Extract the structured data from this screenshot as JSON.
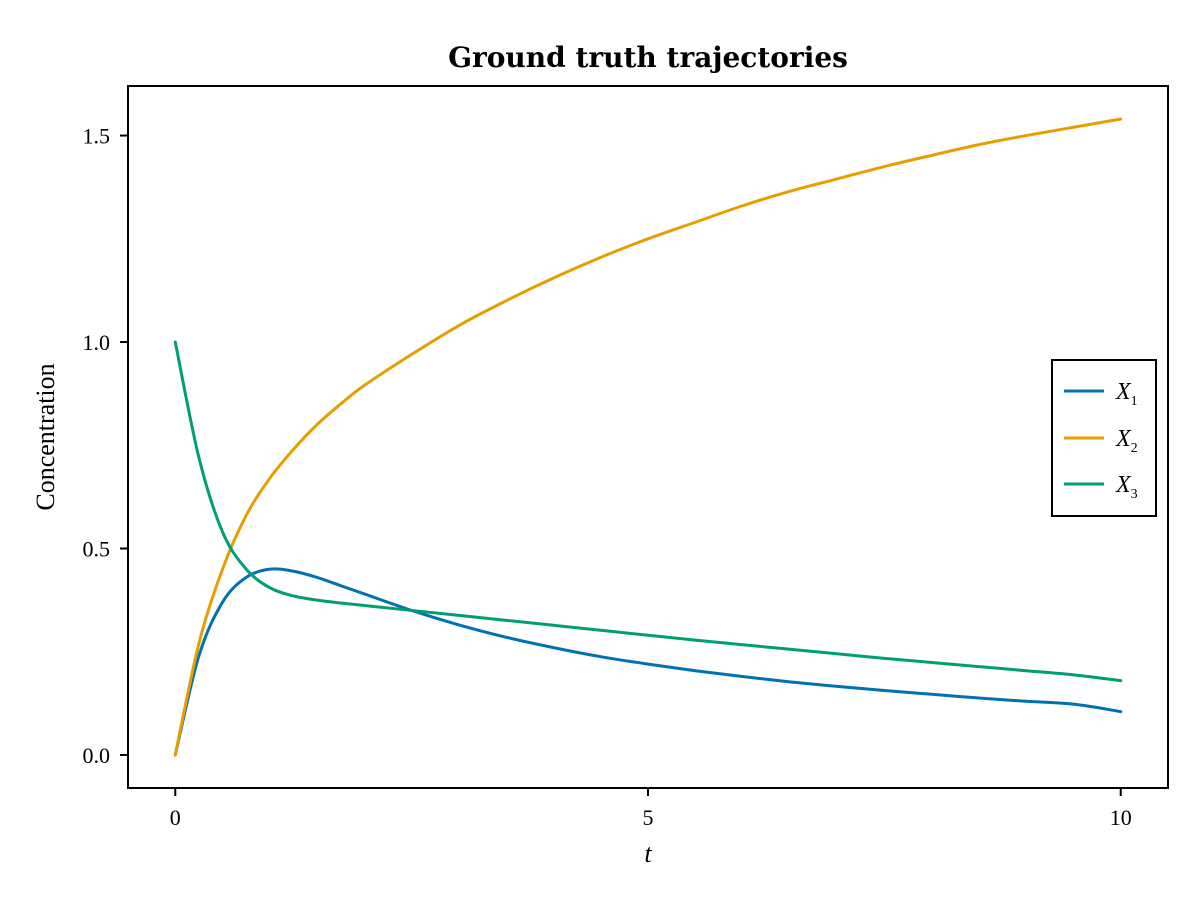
{
  "chart_data": {
    "type": "line",
    "title": "Ground truth trajectories",
    "xlabel": "t",
    "ylabel": "Concentration",
    "xlim": [
      -0.5,
      10.5
    ],
    "ylim": [
      -0.08,
      1.62
    ],
    "x_ticks": [
      0,
      5,
      10
    ],
    "x_tick_labels": [
      "0",
      "5",
      "10"
    ],
    "y_ticks": [
      0.0,
      0.5,
      1.0,
      1.5
    ],
    "y_tick_labels": [
      "0.0",
      "0.5",
      "1.0",
      "1.5"
    ],
    "grid": false,
    "legend_position": "right",
    "x": [
      0,
      0.25,
      0.5,
      0.75,
      1.0,
      1.25,
      1.5,
      1.75,
      2.0,
      2.5,
      3.0,
      3.5,
      4.0,
      4.5,
      5.0,
      5.5,
      6.0,
      6.5,
      7.0,
      7.5,
      8.0,
      8.5,
      9.0,
      9.5,
      10.0
    ],
    "series": [
      {
        "name": "X",
        "subscript": "1",
        "color": "#0072b2",
        "values": [
          0.0,
          0.24,
          0.37,
          0.43,
          0.45,
          0.445,
          0.43,
          0.41,
          0.39,
          0.35,
          0.315,
          0.285,
          0.26,
          0.238,
          0.22,
          0.204,
          0.19,
          0.177,
          0.166,
          0.156,
          0.147,
          0.138,
          0.13,
          0.123,
          0.105
        ]
      },
      {
        "name": "X",
        "subscript": "2",
        "color": "#e69f00",
        "values": [
          0.0,
          0.27,
          0.45,
          0.58,
          0.67,
          0.74,
          0.8,
          0.85,
          0.895,
          0.97,
          1.04,
          1.1,
          1.155,
          1.205,
          1.25,
          1.29,
          1.33,
          1.365,
          1.395,
          1.425,
          1.452,
          1.478,
          1.5,
          1.52,
          1.54
        ]
      },
      {
        "name": "X",
        "subscript": "3",
        "color": "#009e73",
        "values": [
          1.0,
          0.72,
          0.54,
          0.45,
          0.405,
          0.385,
          0.375,
          0.368,
          0.362,
          0.35,
          0.338,
          0.326,
          0.314,
          0.302,
          0.29,
          0.278,
          0.267,
          0.256,
          0.245,
          0.234,
          0.224,
          0.214,
          0.204,
          0.194,
          0.18
        ]
      }
    ]
  }
}
